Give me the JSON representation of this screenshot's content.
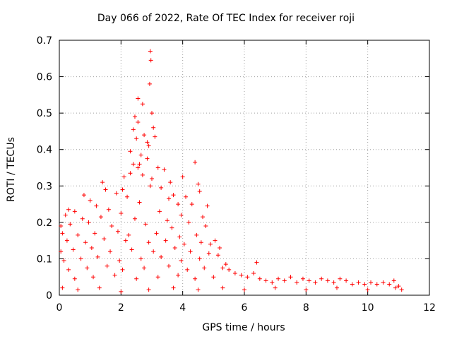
{
  "chart_data": {
    "type": "scatter",
    "title": "Day 066 of 2022, Rate Of TEC Index for receiver roji",
    "xlabel": "GPS time / hours",
    "ylabel": "ROTI / TECUs",
    "xlim": [
      0,
      12
    ],
    "ylim": [
      0,
      0.7
    ],
    "xticks": [
      0,
      2,
      4,
      6,
      8,
      10,
      12
    ],
    "yticks": [
      0,
      0.1,
      0.2,
      0.3,
      0.4,
      0.5,
      0.6,
      0.7
    ],
    "ytick_labels": [
      "0",
      "0.1",
      "0.2",
      "0.3",
      "0.4",
      "0.5",
      "0.6",
      "0.7"
    ],
    "grid": true,
    "marker": "+",
    "color": "#ff0000",
    "x_range_of_data": [
      0,
      11.1
    ],
    "points": [
      [
        2.95,
        0.67
      ],
      [
        2.97,
        0.645
      ],
      [
        2.93,
        0.58
      ],
      [
        2.55,
        0.54
      ],
      [
        2.7,
        0.525
      ],
      [
        3.0,
        0.5
      ],
      [
        2.45,
        0.49
      ],
      [
        2.55,
        0.475
      ],
      [
        2.4,
        0.455
      ],
      [
        3.05,
        0.46
      ],
      [
        2.75,
        0.44
      ],
      [
        2.5,
        0.43
      ],
      [
        3.1,
        0.435
      ],
      [
        2.85,
        0.42
      ],
      [
        2.9,
        0.41
      ],
      [
        2.3,
        0.395
      ],
      [
        2.65,
        0.385
      ],
      [
        2.85,
        0.375
      ],
      [
        2.6,
        0.36
      ],
      [
        2.4,
        0.36
      ],
      [
        3.2,
        0.35
      ],
      [
        3.4,
        0.345
      ],
      [
        2.55,
        0.35
      ],
      [
        2.7,
        0.33
      ],
      [
        2.3,
        0.335
      ],
      [
        3.0,
        0.32
      ],
      [
        4.0,
        0.325
      ],
      [
        2.1,
        0.325
      ],
      [
        4.4,
        0.365
      ],
      [
        3.6,
        0.31
      ],
      [
        1.4,
        0.31
      ],
      [
        2.95,
        0.3
      ],
      [
        2.05,
        0.29
      ],
      [
        4.5,
        0.305
      ],
      [
        3.3,
        0.295
      ],
      [
        1.5,
        0.29
      ],
      [
        0.8,
        0.275
      ],
      [
        1.85,
        0.28
      ],
      [
        2.2,
        0.27
      ],
      [
        3.7,
        0.275
      ],
      [
        4.1,
        0.27
      ],
      [
        4.55,
        0.285
      ],
      [
        3.55,
        0.265
      ],
      [
        1.0,
        0.26
      ],
      [
        2.6,
        0.255
      ],
      [
        3.85,
        0.25
      ],
      [
        4.3,
        0.25
      ],
      [
        4.8,
        0.245
      ],
      [
        1.2,
        0.245
      ],
      [
        0.3,
        0.235
      ],
      [
        0.5,
        0.23
      ],
      [
        1.6,
        0.235
      ],
      [
        2.0,
        0.225
      ],
      [
        3.25,
        0.23
      ],
      [
        3.95,
        0.22
      ],
      [
        4.65,
        0.215
      ],
      [
        0.2,
        0.22
      ],
      [
        0.75,
        0.21
      ],
      [
        1.35,
        0.215
      ],
      [
        2.45,
        0.21
      ],
      [
        3.5,
        0.205
      ],
      [
        4.2,
        0.2
      ],
      [
        0.05,
        0.19
      ],
      [
        0.35,
        0.195
      ],
      [
        0.95,
        0.2
      ],
      [
        1.7,
        0.19
      ],
      [
        2.8,
        0.195
      ],
      [
        3.65,
        0.185
      ],
      [
        4.75,
        0.19
      ],
      [
        5.05,
        0.15
      ],
      [
        5.2,
        0.13
      ],
      [
        0.1,
        0.17
      ],
      [
        0.6,
        0.165
      ],
      [
        1.15,
        0.17
      ],
      [
        1.9,
        0.175
      ],
      [
        2.25,
        0.165
      ],
      [
        3.15,
        0.17
      ],
      [
        3.9,
        0.16
      ],
      [
        4.45,
        0.165
      ],
      [
        4.9,
        0.14
      ],
      [
        0.25,
        0.15
      ],
      [
        0.85,
        0.145
      ],
      [
        1.45,
        0.155
      ],
      [
        2.15,
        0.15
      ],
      [
        2.9,
        0.145
      ],
      [
        3.45,
        0.15
      ],
      [
        4.05,
        0.14
      ],
      [
        4.6,
        0.145
      ],
      [
        5.15,
        0.11
      ],
      [
        5.4,
        0.085
      ],
      [
        0.05,
        0.12
      ],
      [
        0.45,
        0.125
      ],
      [
        1.05,
        0.13
      ],
      [
        1.65,
        0.12
      ],
      [
        2.35,
        0.125
      ],
      [
        3.05,
        0.12
      ],
      [
        3.75,
        0.13
      ],
      [
        4.25,
        0.12
      ],
      [
        4.85,
        0.115
      ],
      [
        5.5,
        0.07
      ],
      [
        0.15,
        0.095
      ],
      [
        0.7,
        0.1
      ],
      [
        1.25,
        0.105
      ],
      [
        1.95,
        0.095
      ],
      [
        2.65,
        0.1
      ],
      [
        3.3,
        0.105
      ],
      [
        3.95,
        0.095
      ],
      [
        4.55,
        0.1
      ],
      [
        5.3,
        0.075
      ],
      [
        5.7,
        0.06
      ],
      [
        0.3,
        0.07
      ],
      [
        0.9,
        0.075
      ],
      [
        1.55,
        0.08
      ],
      [
        2.05,
        0.07
      ],
      [
        2.75,
        0.075
      ],
      [
        3.55,
        0.08
      ],
      [
        4.15,
        0.07
      ],
      [
        4.7,
        0.075
      ],
      [
        5.9,
        0.055
      ],
      [
        6.1,
        0.05
      ],
      [
        0.5,
        0.045
      ],
      [
        1.1,
        0.05
      ],
      [
        1.8,
        0.055
      ],
      [
        2.5,
        0.045
      ],
      [
        3.2,
        0.05
      ],
      [
        3.85,
        0.055
      ],
      [
        4.4,
        0.045
      ],
      [
        5.0,
        0.05
      ],
      [
        6.3,
        0.06
      ],
      [
        6.4,
        0.09
      ],
      [
        6.5,
        0.045
      ],
      [
        6.7,
        0.04
      ],
      [
        6.9,
        0.035
      ],
      [
        7.1,
        0.045
      ],
      [
        7.3,
        0.04
      ],
      [
        7.5,
        0.05
      ],
      [
        7.7,
        0.035
      ],
      [
        7.9,
        0.045
      ],
      [
        8.1,
        0.04
      ],
      [
        8.3,
        0.035
      ],
      [
        8.5,
        0.045
      ],
      [
        8.7,
        0.04
      ],
      [
        8.9,
        0.035
      ],
      [
        9.1,
        0.045
      ],
      [
        9.3,
        0.04
      ],
      [
        9.5,
        0.03
      ],
      [
        9.7,
        0.035
      ],
      [
        9.9,
        0.03
      ],
      [
        10.1,
        0.035
      ],
      [
        10.3,
        0.03
      ],
      [
        10.5,
        0.035
      ],
      [
        10.7,
        0.03
      ],
      [
        10.85,
        0.04
      ],
      [
        11.0,
        0.025
      ],
      [
        11.1,
        0.015
      ],
      [
        0.1,
        0.02
      ],
      [
        0.6,
        0.015
      ],
      [
        1.3,
        0.02
      ],
      [
        2.0,
        0.01
      ],
      [
        2.9,
        0.015
      ],
      [
        3.7,
        0.02
      ],
      [
        4.5,
        0.015
      ],
      [
        5.3,
        0.02
      ],
      [
        6.0,
        0.015
      ],
      [
        7.0,
        0.02
      ],
      [
        8.0,
        0.015
      ],
      [
        9.0,
        0.02
      ],
      [
        10.0,
        0.015
      ],
      [
        10.9,
        0.02
      ]
    ]
  }
}
